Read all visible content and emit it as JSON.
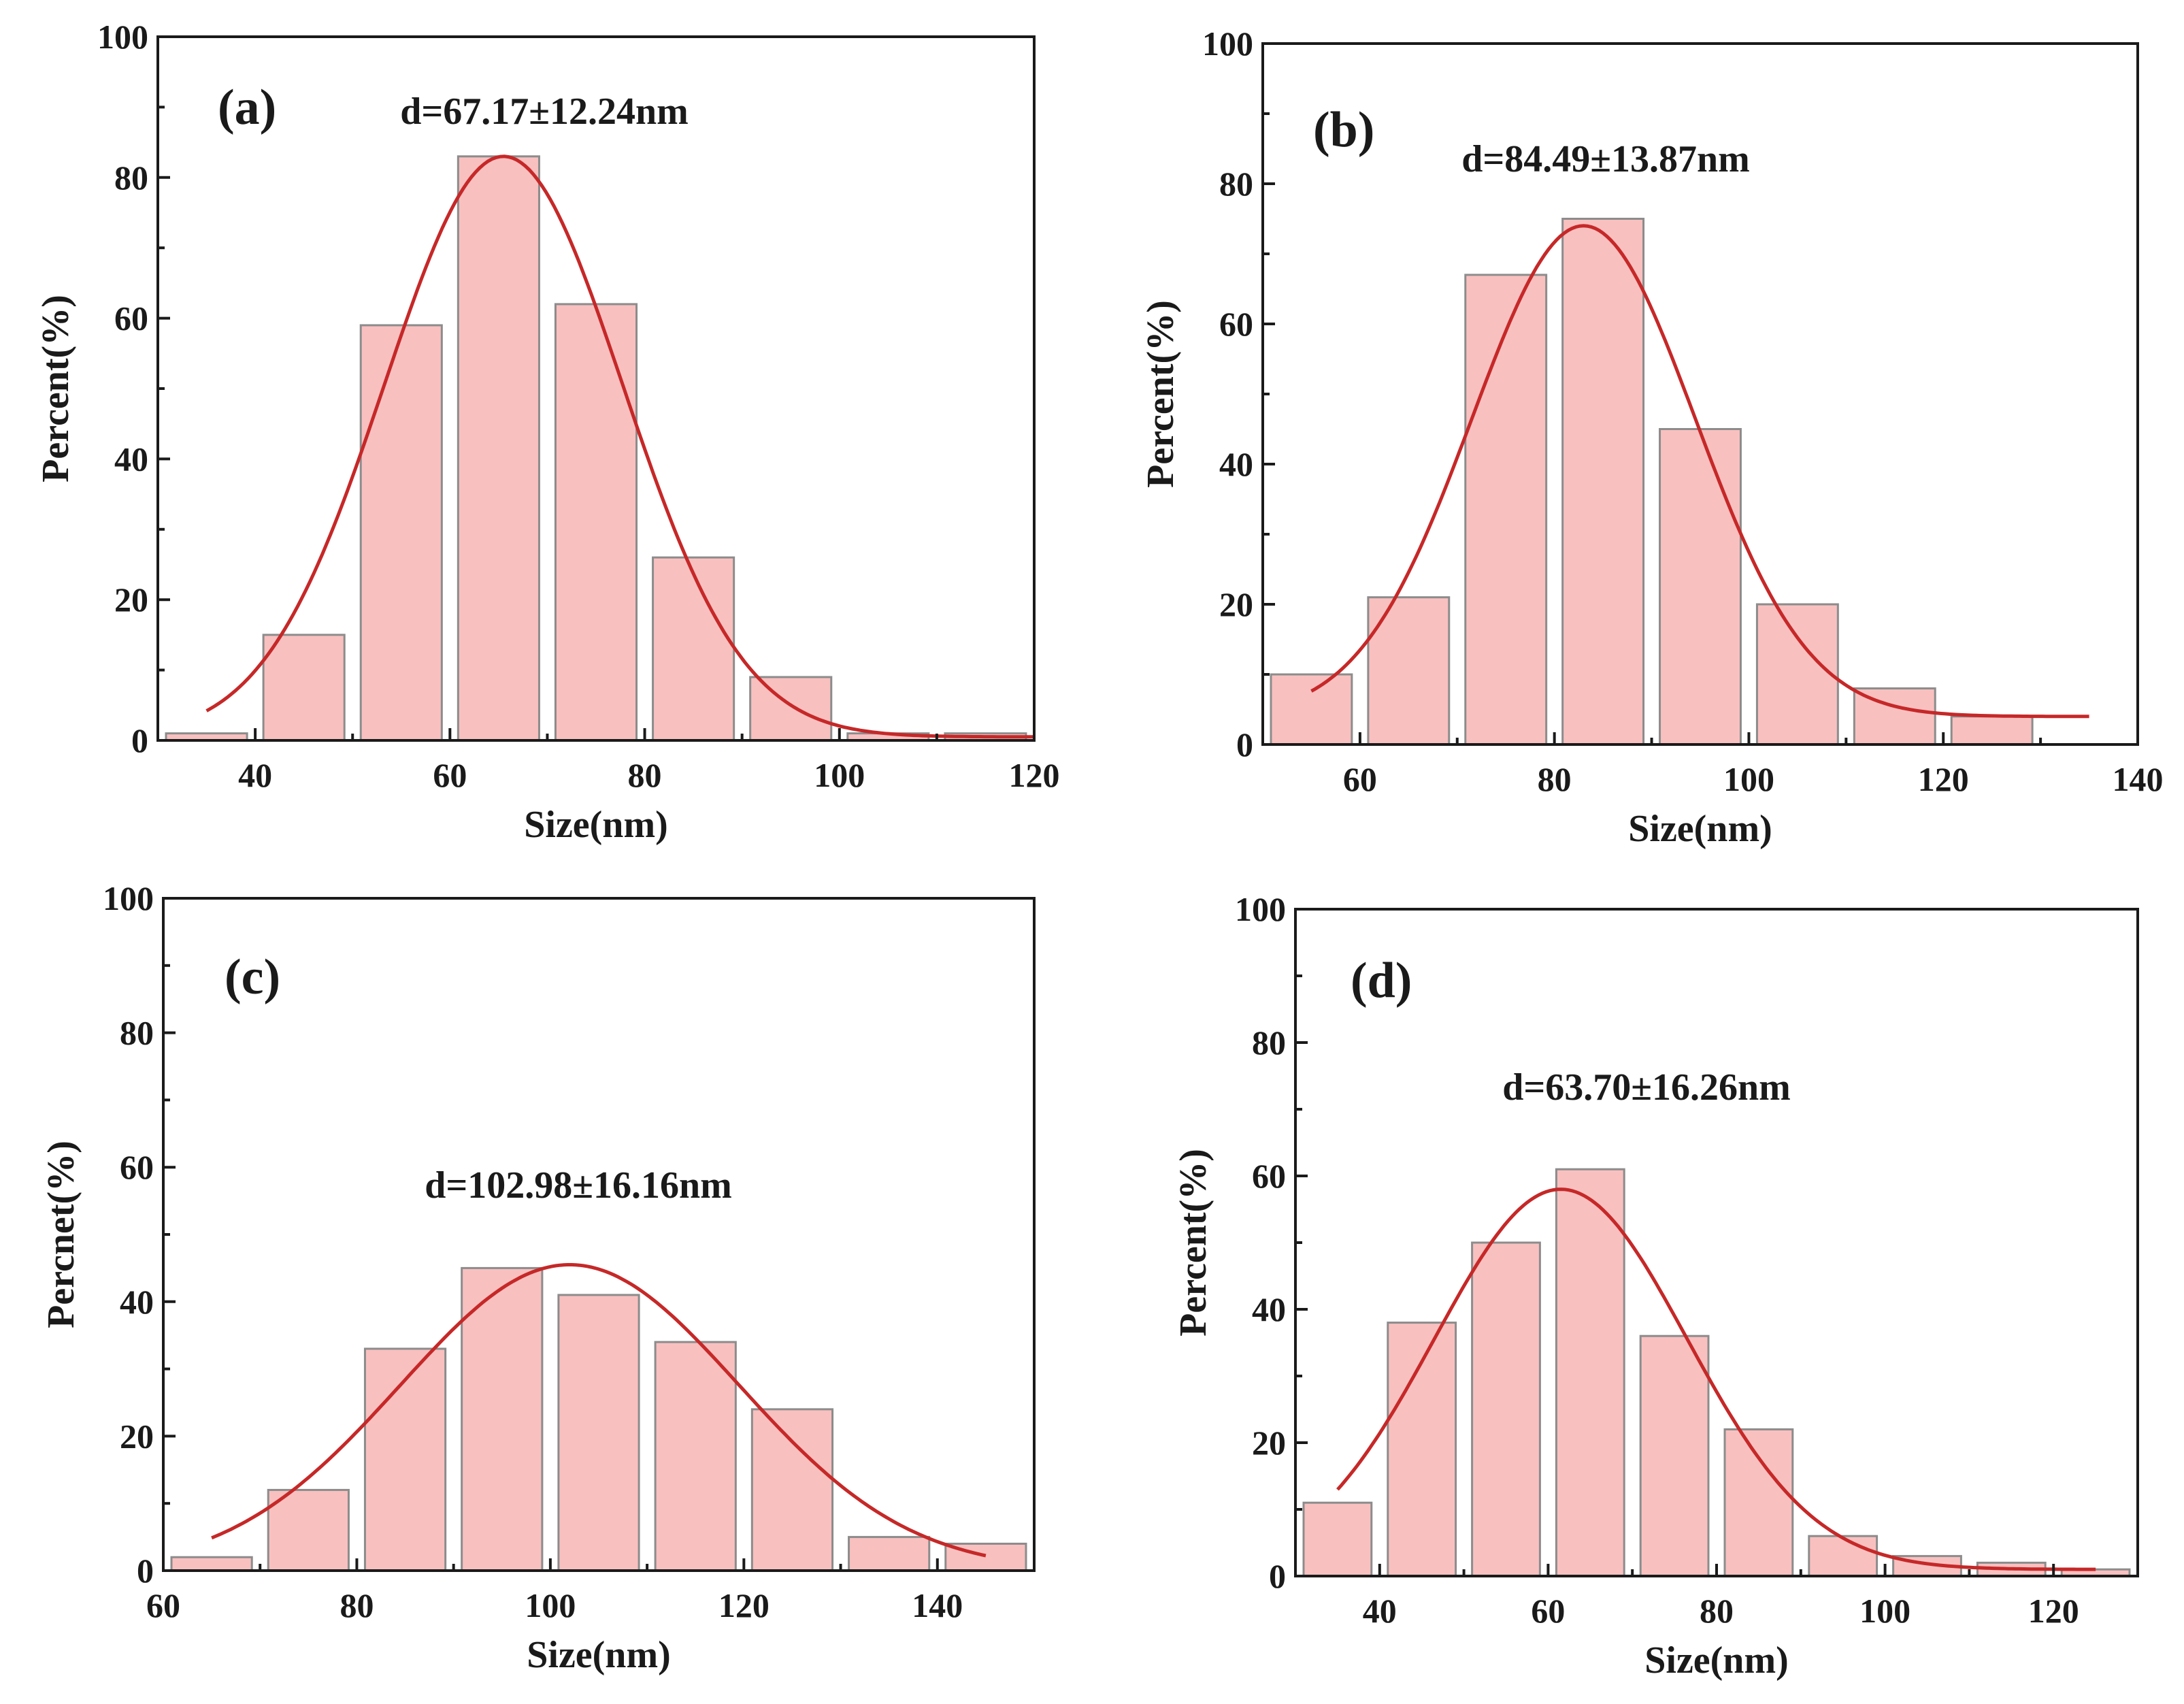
{
  "chart_data": [
    {
      "type": "bar",
      "panel_label": "(a)",
      "annotation": "d=67.17±12.24nm",
      "xlabel": "Size(nm)",
      "ylabel": "Percent(%)",
      "xlim": [
        30,
        120
      ],
      "ylim": [
        0,
        100
      ],
      "xticks": [
        40,
        60,
        80,
        100,
        120
      ],
      "yticks": [
        0,
        20,
        40,
        60,
        80,
        100
      ],
      "bin_width": 10,
      "bins": [
        35,
        45,
        55,
        65,
        75,
        85,
        95,
        105,
        115
      ],
      "values": [
        1,
        15,
        59,
        83,
        62,
        26,
        9,
        1,
        1
      ],
      "fit": {
        "type": "gaussian",
        "mean": 65.5,
        "sigma": 12.24,
        "peak": 83,
        "baseline": 0.5,
        "x_range": [
          35,
          120
        ]
      }
    },
    {
      "type": "bar",
      "panel_label": "(b)",
      "annotation": "d=84.49±13.87nm",
      "xlabel": "Size(nm)",
      "ylabel": "Percent(%)",
      "xlim": [
        50,
        140
      ],
      "ylim": [
        0,
        100
      ],
      "xticks": [
        60,
        80,
        100,
        120,
        140
      ],
      "yticks": [
        0,
        20,
        40,
        60,
        80,
        100
      ],
      "bin_width": 10,
      "bins": [
        55,
        65,
        75,
        85,
        95,
        105,
        115,
        125
      ],
      "values": [
        10,
        21,
        67,
        75,
        45,
        20,
        8,
        4
      ],
      "fit": {
        "type": "gaussian",
        "mean": 83,
        "sigma": 11.5,
        "peak": 74,
        "baseline": 4,
        "x_range": [
          55,
          135
        ]
      }
    },
    {
      "type": "bar",
      "panel_label": "(c)",
      "annotation": "d=102.98±16.16nm",
      "xlabel": "Size(nm)",
      "ylabel": "Percnet(%)",
      "xlim": [
        60,
        150
      ],
      "ylim": [
        0,
        100
      ],
      "xticks": [
        60,
        80,
        100,
        120,
        140
      ],
      "yticks": [
        0,
        20,
        40,
        60,
        80,
        100
      ],
      "bin_width": 10,
      "bins": [
        65,
        75,
        85,
        95,
        105,
        115,
        125,
        135,
        145
      ],
      "values": [
        2,
        12,
        33,
        45,
        41,
        34,
        24,
        5,
        4
      ],
      "fit": {
        "type": "gaussian",
        "mean": 102,
        "sigma": 17.5,
        "peak": 45.5,
        "baseline": 0,
        "x_range": [
          65,
          145
        ]
      }
    },
    {
      "type": "bar",
      "panel_label": "(d)",
      "annotation": "d=63.70±16.26nm",
      "xlabel": "Size(nm)",
      "ylabel": "Percent(%)",
      "xlim": [
        30,
        130
      ],
      "ylim": [
        0,
        100
      ],
      "xticks": [
        40,
        60,
        80,
        100,
        120
      ],
      "yticks": [
        0,
        20,
        40,
        60,
        80,
        100
      ],
      "bin_width": 10,
      "bins": [
        35,
        45,
        55,
        65,
        75,
        85,
        95,
        105,
        115,
        125
      ],
      "values": [
        11,
        38,
        50,
        61,
        36,
        22,
        6,
        3,
        2,
        1
      ],
      "fit": {
        "type": "gaussian",
        "mean": 61.5,
        "sigma": 15,
        "peak": 58,
        "baseline": 1,
        "x_range": [
          35,
          125
        ]
      }
    }
  ]
}
